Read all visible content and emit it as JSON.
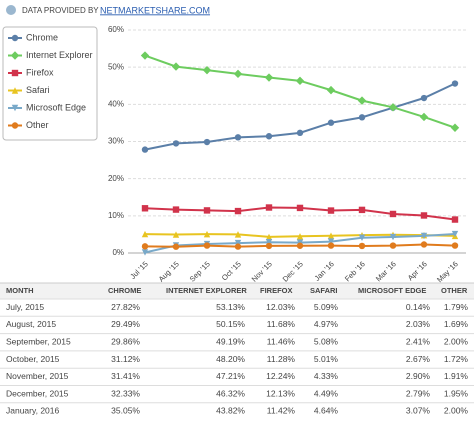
{
  "header": {
    "text": "DATA PROVIDED BY",
    "link": "NETMARKETSHARE.COM"
  },
  "chart_data": {
    "type": "line",
    "categories": [
      "Jul '15",
      "Aug '15",
      "Sep '15",
      "Oct '15",
      "Nov '15",
      "Dec '15",
      "Jan '16",
      "Feb '16",
      "Mar '16",
      "Apr '16",
      "May '16"
    ],
    "series": [
      {
        "name": "Chrome",
        "color": "#5b7fa8",
        "marker": "circle",
        "values": [
          27.82,
          29.49,
          29.86,
          31.12,
          31.41,
          32.33,
          35.05,
          36.5,
          39.1,
          41.7,
          45.6
        ]
      },
      {
        "name": "Internet Explorer",
        "color": "#6dcc5f",
        "marker": "diamond",
        "values": [
          53.13,
          50.15,
          49.19,
          48.2,
          47.21,
          46.32,
          43.82,
          41.0,
          39.2,
          36.6,
          33.7
        ]
      },
      {
        "name": "Firefox",
        "color": "#d1334b",
        "marker": "square",
        "values": [
          12.03,
          11.68,
          11.46,
          11.28,
          12.24,
          12.13,
          11.42,
          11.6,
          10.5,
          10.1,
          9.0
        ]
      },
      {
        "name": "Safari",
        "color": "#e8c420",
        "marker": "triangle",
        "values": [
          5.09,
          4.97,
          5.08,
          5.01,
          4.33,
          4.49,
          4.64,
          4.8,
          4.9,
          4.8,
          4.6
        ]
      },
      {
        "name": "Microsoft Edge",
        "color": "#79a9c9",
        "marker": "triangle-down",
        "values": [
          0.14,
          2.03,
          2.41,
          2.67,
          2.9,
          2.79,
          3.07,
          4.1,
          4.3,
          4.6,
          5.1
        ]
      },
      {
        "name": "Other",
        "color": "#e07b1d",
        "marker": "circle",
        "values": [
          1.79,
          1.69,
          2.0,
          1.72,
          1.91,
          1.95,
          2.0,
          1.9,
          2.0,
          2.3,
          2.0
        ]
      }
    ],
    "ylim": [
      0,
      60
    ],
    "yticks": [
      {
        "value": 0,
        "label": "0%"
      },
      {
        "value": 10,
        "label": "10%"
      },
      {
        "value": 20,
        "label": "20%"
      },
      {
        "value": 30,
        "label": "30%"
      },
      {
        "value": 40,
        "label": "40%"
      },
      {
        "value": 50,
        "label": "50%"
      },
      {
        "value": 60,
        "label": "60%"
      }
    ],
    "grid": true
  },
  "table": {
    "columns": [
      "MONTH",
      "CHROME",
      "INTERNET EXPLORER",
      "FIREFOX",
      "SAFARI",
      "MICROSOFT EDGE",
      "OTHER"
    ],
    "rows": [
      [
        "July, 2015",
        "27.82%",
        "53.13%",
        "12.03%",
        "5.09%",
        "0.14%",
        "1.79%"
      ],
      [
        "August, 2015",
        "29.49%",
        "50.15%",
        "11.68%",
        "4.97%",
        "2.03%",
        "1.69%"
      ],
      [
        "September, 2015",
        "29.86%",
        "49.19%",
        "11.46%",
        "5.08%",
        "2.41%",
        "2.00%"
      ],
      [
        "October, 2015",
        "31.12%",
        "48.20%",
        "11.28%",
        "5.01%",
        "2.67%",
        "1.72%"
      ],
      [
        "November, 2015",
        "31.41%",
        "47.21%",
        "12.24%",
        "4.33%",
        "2.90%",
        "1.91%"
      ],
      [
        "December, 2015",
        "32.33%",
        "46.32%",
        "12.13%",
        "4.49%",
        "2.79%",
        "1.95%"
      ],
      [
        "January, 2016",
        "35.05%",
        "43.82%",
        "11.42%",
        "4.64%",
        "3.07%",
        "2.00%"
      ]
    ]
  }
}
